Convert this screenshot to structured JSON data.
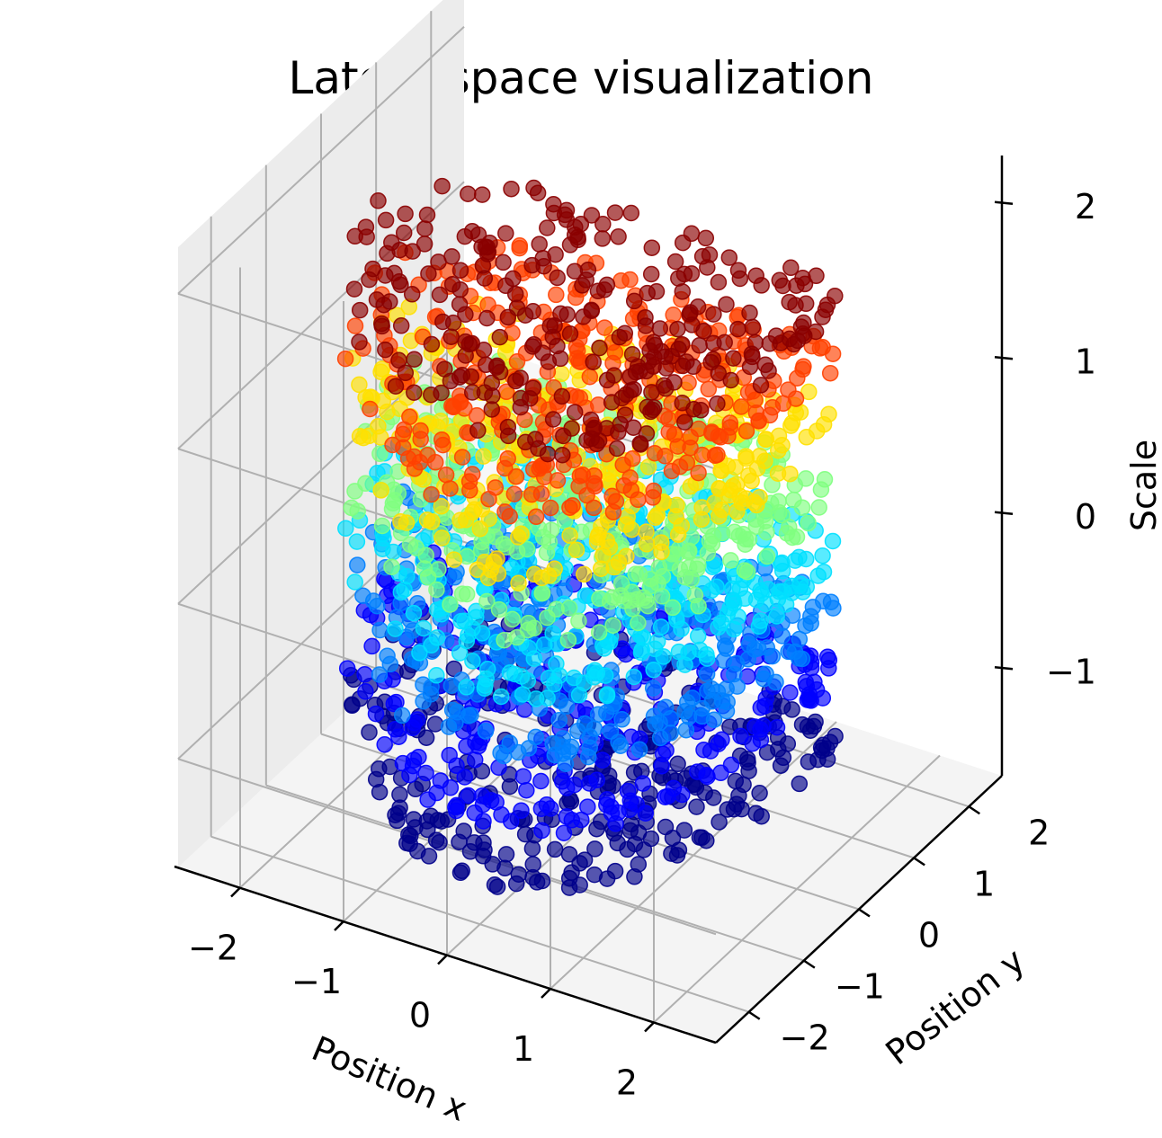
{
  "chart_data": {
    "type": "scatter",
    "projection": "3d",
    "title": "Latent space visualization",
    "xlabel": "Position x",
    "ylabel": "Position y",
    "zlabel": "Scale",
    "xlim": [
      -2.6,
      2.6
    ],
    "ylim": [
      -2.6,
      2.6
    ],
    "zlim": [
      -1.7,
      2.3
    ],
    "xticks": [
      -2,
      -1,
      0,
      1,
      2
    ],
    "yticks": [
      -2,
      -1,
      0,
      1,
      2
    ],
    "zticks": [
      -1,
      0,
      1,
      2
    ],
    "xtick_labels": [
      "−2",
      "−1",
      "0",
      "1",
      "2"
    ],
    "ytick_labels": [
      "−2",
      "−1",
      "0",
      "1",
      "2"
    ],
    "ztick_labels": [
      "−1",
      "0",
      "1",
      "2"
    ],
    "colormap": "jet",
    "color_by": "z",
    "marker_alpha": 0.65,
    "grid": true,
    "pane_color": "#f2f2f2",
    "layers": [
      {
        "scale": -1.4,
        "color": "#00008b"
      },
      {
        "scale": -1.0,
        "color": "#0000ff"
      },
      {
        "scale": -0.6,
        "color": "#0080ff"
      },
      {
        "scale": -0.2,
        "color": "#00e0ff"
      },
      {
        "scale": 0.2,
        "color": "#80ff80"
      },
      {
        "scale": 0.6,
        "color": "#ffe000"
      },
      {
        "scale": 1.0,
        "color": "#ff4000"
      },
      {
        "scale": 1.4,
        "color": "#8b0000"
      }
    ],
    "points_per_layer": 300
  }
}
